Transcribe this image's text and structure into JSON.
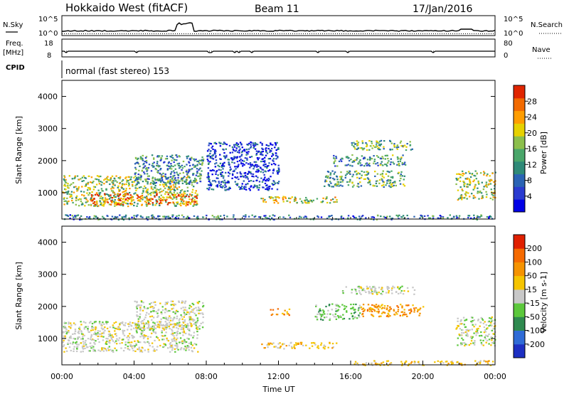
{
  "header": {
    "station": "Hokkaido West (fitACF)",
    "beam": "Beam 11",
    "date": "17/Jan/2016"
  },
  "top_panels": {
    "nsky_label": "N.Sky",
    "nsky_ticks": [
      "10^5",
      "10^0"
    ],
    "nsearch_label": "N.Search",
    "nsearch_ticks": [
      "10^5",
      "10^0"
    ],
    "freq_label": "Freq.",
    "freq_unit": "[MHz]",
    "freq_ticks": [
      "18",
      "8"
    ],
    "nave_label": "Nave",
    "nave_ticks": [
      "80",
      "0"
    ],
    "cpid_label": "CPID",
    "cpid_text": "normal (fast stereo) 153"
  },
  "chart_data": [
    {
      "type": "heatmap",
      "name": "power",
      "xlabel": "",
      "ylabel": "Slant Range [km]",
      "ylim": [
        180,
        4500
      ],
      "yticks": [
        "1000",
        "2000",
        "3000",
        "4000"
      ],
      "xlim": [
        0,
        24
      ],
      "colorbar": {
        "label": "Power [dB]",
        "ticks": [
          "4",
          "8",
          "12",
          "16",
          "20",
          "24",
          "28"
        ],
        "colors": [
          "#0000e6",
          "#2a3bd0",
          "#2a63b4",
          "#2f8a78",
          "#4aa66a",
          "#8cbf4c",
          "#e6d100",
          "#ff9d00",
          "#f26a00",
          "#e02500"
        ]
      },
      "regions": [
        {
          "t": [
            0.0,
            7.5
          ],
          "r": [
            600,
            1550
          ],
          "level": 0.55
        },
        {
          "t": [
            1.5,
            7.5
          ],
          "r": [
            650,
            1000
          ],
          "level": 0.85
        },
        {
          "t": [
            4.0,
            7.8
          ],
          "r": [
            1300,
            2200
          ],
          "level": 0.35
        },
        {
          "t": [
            11.0,
            15.2
          ],
          "r": [
            700,
            900
          ],
          "level": 0.6
        },
        {
          "t": [
            14.5,
            19.0
          ],
          "r": [
            1200,
            1700
          ],
          "level": 0.45
        },
        {
          "t": [
            16.0,
            19.5
          ],
          "r": [
            2350,
            2650
          ],
          "level": 0.45
        },
        {
          "t": [
            15.0,
            19.0
          ],
          "r": [
            1850,
            2200
          ],
          "level": 0.4
        },
        {
          "t": [
            21.8,
            24.0
          ],
          "r": [
            800,
            1700
          ],
          "level": 0.55
        },
        {
          "t": [
            0.0,
            24.0
          ],
          "r": [
            180,
            330
          ],
          "level": 0.3
        },
        {
          "t": [
            8.0,
            12.0
          ],
          "r": [
            1100,
            2600
          ],
          "level": 0.15
        }
      ]
    },
    {
      "type": "heatmap",
      "name": "velocity",
      "xlabel": "Time UT",
      "ylabel": "Slant Range [km]",
      "ylim": [
        180,
        4500
      ],
      "yticks": [
        "1000",
        "2000",
        "3000",
        "4000"
      ],
      "xlim": [
        0,
        24
      ],
      "xticks": [
        "00:00",
        "04:00",
        "08:00",
        "12:00",
        "16:00",
        "20:00",
        "00:00"
      ],
      "colorbar": {
        "label": "Velocity [m s-1]",
        "ticks": [
          "200",
          "100",
          "50",
          "15",
          "-15",
          "-50",
          "-100",
          "-200"
        ],
        "colors": [
          "#1d2fc2",
          "#2f6bd6",
          "#2f8a50",
          "#5cc83c",
          "#c8c8c8",
          "#f5c400",
          "#f59300",
          "#f56a00",
          "#e02000"
        ]
      },
      "regions": [
        {
          "t": [
            0.0,
            7.5
          ],
          "r": [
            600,
            1550
          ],
          "class": "gray"
        },
        {
          "t": [
            4.0,
            7.8
          ],
          "r": [
            1300,
            2200
          ],
          "class": "gray"
        },
        {
          "t": [
            11.0,
            15.2
          ],
          "r": [
            700,
            900
          ],
          "class": "yellow"
        },
        {
          "t": [
            11.5,
            12.6
          ],
          "r": [
            1750,
            1950
          ],
          "class": "orange"
        },
        {
          "t": [
            14.0,
            16.5
          ],
          "r": [
            1600,
            2100
          ],
          "class": "green"
        },
        {
          "t": [
            16.5,
            20.0
          ],
          "r": [
            1700,
            2100
          ],
          "class": "orange"
        },
        {
          "t": [
            15.5,
            19.5
          ],
          "r": [
            2400,
            2650
          ],
          "class": "gray"
        },
        {
          "t": [
            21.8,
            24.0
          ],
          "r": [
            800,
            1700
          ],
          "class": "mixed"
        },
        {
          "t": [
            16.0,
            24.0
          ],
          "r": [
            180,
            330
          ],
          "class": "yellow"
        }
      ]
    }
  ]
}
